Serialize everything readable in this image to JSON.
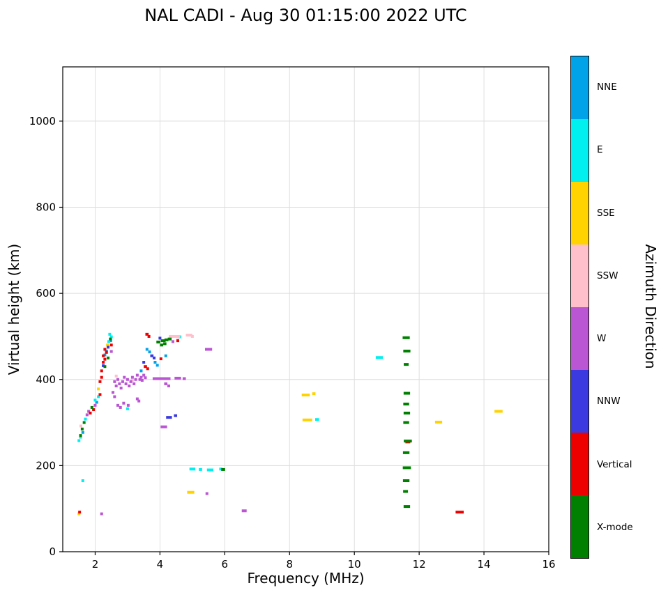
{
  "title": "NAL CADI - Aug 30 01:15:00 2022 UTC",
  "chart_data": {
    "type": "scatter",
    "title": "NAL CADI - Aug 30 01:15:00 2022 UTC",
    "xlabel": "Frequency (MHz)",
    "ylabel": "Virtual height (km)",
    "legend_title": "Azimuth Direction",
    "xlim": [
      1,
      16
    ],
    "ylim": [
      0,
      1126
    ],
    "xticks": [
      2,
      4,
      6,
      8,
      10,
      12,
      14,
      16
    ],
    "yticks": [
      0,
      200,
      400,
      600,
      800,
      1000
    ],
    "grid": true,
    "grid_color": "#dcdcdc",
    "legend_position": "right-colorbar",
    "marker_note": "points given as [freq_MHz, virtual_height_km, optional_width_MHz]",
    "series": [
      {
        "name": "NNE",
        "color": "#00A2E8",
        "points": [
          [
            1.62,
            277
          ],
          [
            2.05,
            347
          ],
          [
            2.3,
            457
          ],
          [
            2.35,
            466
          ],
          [
            2.48,
            490
          ],
          [
            3.42,
            420
          ],
          [
            3.6,
            470
          ],
          [
            3.68,
            464
          ],
          [
            3.85,
            440
          ],
          [
            3.92,
            433
          ],
          [
            4.18,
            455
          ]
        ]
      },
      {
        "name": "E",
        "color": "#00EFEF",
        "points": [
          [
            1.5,
            258
          ],
          [
            1.55,
            266
          ],
          [
            1.62,
            165
          ],
          [
            1.7,
            308
          ],
          [
            2.0,
            352
          ],
          [
            2.1,
            360
          ],
          [
            2.42,
            488
          ],
          [
            2.45,
            505
          ],
          [
            2.5,
            499
          ],
          [
            3.0,
            332
          ],
          [
            4.62,
            499
          ],
          [
            5.0,
            192,
            0.18
          ],
          [
            5.25,
            191,
            0.1
          ],
          [
            5.55,
            190,
            0.2
          ],
          [
            5.88,
            192,
            0.1
          ],
          [
            8.85,
            307,
            0.12
          ],
          [
            10.77,
            451,
            0.22
          ]
        ]
      },
      {
        "name": "SSE",
        "color": "#FFD300",
        "points": [
          [
            1.5,
            88
          ],
          [
            2.1,
            378
          ],
          [
            2.38,
            480
          ],
          [
            4.95,
            138,
            0.22
          ],
          [
            8.5,
            364,
            0.25
          ],
          [
            8.75,
            367,
            0.1
          ],
          [
            8.55,
            306,
            0.3
          ],
          [
            12.6,
            301,
            0.22
          ],
          [
            14.45,
            326,
            0.25
          ]
        ]
      },
      {
        "name": "SSW",
        "color": "#FFC0CB",
        "points": [
          [
            1.56,
            292
          ],
          [
            2.65,
            408
          ],
          [
            3.15,
            398
          ],
          [
            4.45,
            500,
            0.35
          ],
          [
            4.9,
            503,
            0.2
          ],
          [
            4.55,
            492
          ],
          [
            5.0,
            500
          ]
        ]
      },
      {
        "name": "W",
        "color": "#BA55D3",
        "points": [
          [
            1.75,
            318
          ],
          [
            1.8,
            326
          ],
          [
            2.0,
            340
          ],
          [
            2.2,
            88
          ],
          [
            2.5,
            465
          ],
          [
            2.55,
            370
          ],
          [
            2.6,
            360
          ],
          [
            2.6,
            395
          ],
          [
            2.65,
            385
          ],
          [
            2.7,
            400
          ],
          [
            2.7,
            340
          ],
          [
            2.75,
            390
          ],
          [
            2.78,
            335
          ],
          [
            2.8,
            380
          ],
          [
            2.85,
            395
          ],
          [
            2.88,
            345
          ],
          [
            2.9,
            405
          ],
          [
            2.95,
            390
          ],
          [
            3.0,
            400
          ],
          [
            3.02,
            340
          ],
          [
            3.05,
            385
          ],
          [
            3.1,
            395
          ],
          [
            3.15,
            405
          ],
          [
            3.2,
            390
          ],
          [
            3.25,
            400
          ],
          [
            3.3,
            410
          ],
          [
            3.3,
            355
          ],
          [
            3.35,
            350
          ],
          [
            3.38,
            400
          ],
          [
            3.42,
            405
          ],
          [
            3.45,
            398
          ],
          [
            3.5,
            410
          ],
          [
            3.55,
            404
          ],
          [
            4.05,
            402,
            0.55
          ],
          [
            4.55,
            403,
            0.2
          ],
          [
            4.75,
            402,
            0.1
          ],
          [
            4.18,
            390,
            0.1
          ],
          [
            4.27,
            385
          ],
          [
            4.12,
            290,
            0.2
          ],
          [
            4.4,
            488
          ],
          [
            5.5,
            470,
            0.22
          ],
          [
            5.45,
            135
          ],
          [
            6.6,
            95,
            0.15
          ]
        ]
      },
      {
        "name": "NNW",
        "color": "#3A3AE0",
        "points": [
          [
            2.25,
            432
          ],
          [
            2.4,
            475
          ],
          [
            3.5,
            440
          ],
          [
            3.75,
            455,
            0.1
          ],
          [
            3.82,
            450
          ],
          [
            4.0,
            496
          ],
          [
            4.28,
            312,
            0.18
          ],
          [
            4.48,
            316,
            0.1
          ]
        ]
      },
      {
        "name": "Vertical",
        "color": "#EE0000",
        "points": [
          [
            1.52,
            92
          ],
          [
            1.85,
            322
          ],
          [
            1.95,
            330
          ],
          [
            2.15,
            365
          ],
          [
            2.15,
            395
          ],
          [
            2.2,
            405
          ],
          [
            2.2,
            420
          ],
          [
            2.25,
            440
          ],
          [
            2.25,
            455
          ],
          [
            2.3,
            447
          ],
          [
            2.3,
            470
          ],
          [
            2.35,
            463
          ],
          [
            2.5,
            480
          ],
          [
            3.55,
            430,
            0.1
          ],
          [
            3.62,
            425
          ],
          [
            3.6,
            505,
            0.1
          ],
          [
            3.66,
            500
          ],
          [
            4.03,
            448
          ],
          [
            4.55,
            490
          ],
          [
            11.65,
            255,
            0.15
          ],
          [
            13.25,
            92,
            0.25
          ]
        ]
      },
      {
        "name": "X-mode",
        "color": "#008000",
        "points": [
          [
            1.55,
            270
          ],
          [
            1.6,
            285
          ],
          [
            1.66,
            300
          ],
          [
            1.9,
            335
          ],
          [
            2.3,
            430
          ],
          [
            2.4,
            450
          ],
          [
            2.47,
            494
          ],
          [
            3.95,
            487,
            0.12
          ],
          [
            4.1,
            490,
            0.15
          ],
          [
            4.2,
            492,
            0.12
          ],
          [
            4.05,
            480,
            0.1
          ],
          [
            4.3,
            494,
            0.12
          ],
          [
            4.15,
            483,
            0.1
          ],
          [
            5.95,
            191,
            0.12
          ],
          [
            11.6,
            497,
            0.22
          ],
          [
            11.62,
            466,
            0.22
          ],
          [
            11.6,
            435,
            0.15
          ],
          [
            11.62,
            368,
            0.2
          ],
          [
            11.6,
            343,
            0.18
          ],
          [
            11.62,
            322,
            0.2
          ],
          [
            11.6,
            300,
            0.18
          ],
          [
            11.65,
            257,
            0.25
          ],
          [
            11.6,
            230,
            0.2
          ],
          [
            11.62,
            195,
            0.25
          ],
          [
            11.6,
            165,
            0.2
          ],
          [
            11.58,
            140,
            0.15
          ],
          [
            11.62,
            105,
            0.2
          ]
        ]
      }
    ]
  }
}
